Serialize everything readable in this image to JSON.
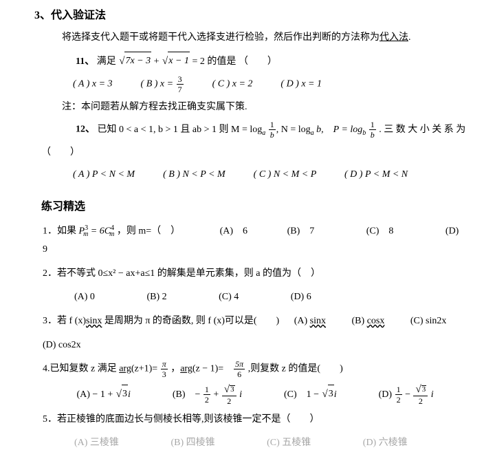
{
  "heading3": "3、代入验证法",
  "intro": "将选择支代入题干或将题干代入选择支进行检验，然后作出判断的方法称为",
  "intro_ul": "代入法",
  "period": ".",
  "q11_label": "11、",
  "q11_text_a": "满足",
  "q11_sqrt1_rad": "7x − 3",
  "q11_plus": " + ",
  "q11_sqrt2_rad": "x − 1",
  "q11_eq": " = 2 的值是 （　　）",
  "q11_A": "( A ) x = 3",
  "q11_B_pre": "( B ) x = ",
  "q11_B_num": "3",
  "q11_B_den": "7",
  "q11_C": "( C ) x = 2",
  "q11_D": "( D ) x = 1",
  "q11_note": "注：本问题若从解方程去找正确支实属下策.",
  "q12_label": "12、",
  "q12_text_a": "已知 0 < a < 1, b > 1 且 ab > 1 则 M = log",
  "q12_sub_a": "a",
  "q12_frac1_n": "1",
  "q12_frac1_d": "b",
  "q12_mid": ", N = log",
  "q12_sub_a2": "a",
  "q12_b": " b,　P = log",
  "q12_sub_b": "b",
  "q12_frac2_n": "1",
  "q12_frac2_d": "b",
  "q12_tail": " . 三 数 大 小 关 系 为",
  "q12_paren": "（　　）",
  "q12_A": "( A ) P < N < M",
  "q12_B": "( B ) N < P < M",
  "q12_C": "( C ) N < M < P",
  "q12_D": "( D ) P < M < N",
  "section": "练习精选",
  "p1_a": "1．如果 ",
  "p1_P": "P",
  "p1_sup3": "3",
  "p1_subm": "m",
  "p1_eq": " = 6C",
  "p1_sup4": "4",
  "p1_subm2": "m",
  "p1_b": " ，则 m=（　）",
  "p1_A": "(A)　6",
  "p1_B": "(B)　7",
  "p1_C": "(C)　8",
  "p1_D": "(D)　9",
  "p2_q": "2．若不等式 0≤x² − ax+a≤1 的解集是单元素集，则 a 的值为（　）",
  "p2_A": "(A) 0",
  "p2_B": "(B) 2",
  "p2_C": "(C) 4",
  "p2_D": "(D) 6",
  "p3_a": "3．若 f (x)",
  "p3_sinx": "sinx",
  "p3_b": " 是周期为 π 的奇函数, 则 f (x)可以是(　　)",
  "p3_A": "(A) ",
  "p3_A2": "sinx",
  "p3_B": "(B) ",
  "p3_B2": "cosx",
  "p3_C": "(C) sin2x",
  "p3_D": "(D) cos2x",
  "p4_a": "4.已知复数 z 满足 ",
  "p4_arg1": "arg",
  "p4_arg1b": "(z+1)= ",
  "p4_f1n": "π",
  "p4_f1d": "3",
  "p4_mid": " ，",
  "p4_arg2": "arg",
  "p4_arg2b": "(z − 1)=　",
  "p4_f2n": "5π",
  "p4_f2d": "6",
  "p4_tail": " ,则复数 z 的值是(　　)",
  "p4_A_pre": "(A) − 1 + ",
  "p4_A_rad": "3",
  "p4_A_post": "i",
  "p4_B_pre": "(B)　− ",
  "p4_B_f1n": "1",
  "p4_B_f1d": "2",
  "p4_B_plus": " + ",
  "p4_B_f2rad": "3",
  "p4_B_f2d": "2",
  "p4_B_post": " i",
  "p4_C_pre": "(C)　1 − ",
  "p4_C_rad": "3",
  "p4_C_post": "i",
  "p4_D_pre": "(D) ",
  "p4_D_f1n": "1",
  "p4_D_f1d": "2",
  "p4_D_minus": " − ",
  "p4_D_f2rad": "3",
  "p4_D_f2d": "2",
  "p4_D_post": " i",
  "p5_q": "5．若正棱锥的底面边长与侧棱长相等,则该棱锥一定不是（　　）",
  "p5_A": "(A) 三棱锥",
  "p5_B": "(B) 四棱锥",
  "p5_C": "(C) 五棱锥",
  "p5_D": "(D) 六棱锥"
}
